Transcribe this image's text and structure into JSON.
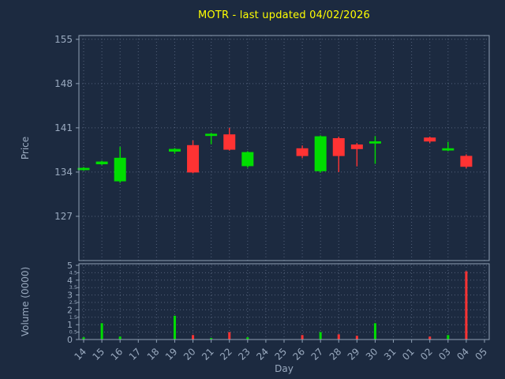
{
  "title": {
    "text": "MOTR - last updated 04/02/2026"
  },
  "colors": {
    "background": "#1c2a40",
    "title": "#ffff00",
    "up": "#00dd00",
    "down": "#ff3333",
    "grid": "#53617a",
    "axis": "#8fa0b4",
    "tick_label": "#9aaabf"
  },
  "chart_data": {
    "type": "candlestick",
    "title": "MOTR - last updated 04/02/2026",
    "x_axis_label": "Day",
    "price_axis_label": "Price",
    "volume_axis_label": "Volume (0000)",
    "categories": [
      "14",
      "15",
      "16",
      "17",
      "18",
      "19",
      "20",
      "21",
      "22",
      "23",
      "24",
      "25",
      "26",
      "27",
      "28",
      "29",
      "30",
      "31",
      "01",
      "02",
      "03",
      "04",
      "05"
    ],
    "price_ticks": [
      127,
      134,
      141,
      148,
      155
    ],
    "price_range": [
      120,
      155.6
    ],
    "volume_major_ticks": [
      0,
      1,
      2,
      3,
      4,
      5
    ],
    "volume_minor_ticks": [
      0.5,
      1.5,
      2.5,
      3.5,
      4.5
    ],
    "volume_range": [
      0,
      5
    ],
    "grid": true,
    "legend": "none",
    "candles": [
      {
        "day": "14",
        "open": 134.4,
        "high": 134.8,
        "low": 134.2,
        "close": 134.6,
        "volume": 0.15
      },
      {
        "day": "15",
        "open": 135.3,
        "high": 135.8,
        "low": 135.1,
        "close": 135.6,
        "volume": 1.1
      },
      {
        "day": "16",
        "open": 132.6,
        "high": 138.0,
        "low": 132.3,
        "close": 136.2,
        "volume": 0.2
      },
      {
        "day": "19",
        "open": 137.3,
        "high": 137.8,
        "low": 136.9,
        "close": 137.6,
        "volume": 1.6
      },
      {
        "day": "20",
        "open": 138.2,
        "high": 139.0,
        "low": 133.8,
        "close": 134.0,
        "volume": 0.3
      },
      {
        "day": "21",
        "open": 139.8,
        "high": 140.2,
        "low": 138.4,
        "close": 140.0,
        "volume": 0.1
      },
      {
        "day": "22",
        "open": 139.9,
        "high": 141.0,
        "low": 137.4,
        "close": 137.6,
        "volume": 0.5
      },
      {
        "day": "23",
        "open": 135.0,
        "high": 137.3,
        "low": 134.7,
        "close": 137.1,
        "volume": 0.15
      },
      {
        "day": "26",
        "open": 137.7,
        "high": 138.2,
        "low": 136.2,
        "close": 136.6,
        "volume": 0.3
      },
      {
        "day": "27",
        "open": 134.2,
        "high": 139.8,
        "low": 133.9,
        "close": 139.6,
        "volume": 0.5
      },
      {
        "day": "28",
        "open": 139.3,
        "high": 139.6,
        "low": 134.0,
        "close": 136.6,
        "volume": 0.35
      },
      {
        "day": "29",
        "open": 138.3,
        "high": 138.6,
        "low": 134.9,
        "close": 137.7,
        "volume": 0.25
      },
      {
        "day": "30",
        "open": 138.6,
        "high": 139.7,
        "low": 135.3,
        "close": 138.8,
        "volume": 1.1
      },
      {
        "day": "02",
        "open": 139.4,
        "high": 139.6,
        "low": 138.6,
        "close": 138.9,
        "volume": 0.2
      },
      {
        "day": "03",
        "open": 137.5,
        "high": 138.8,
        "low": 137.3,
        "close": 137.7,
        "volume": 0.3
      },
      {
        "day": "04",
        "open": 136.5,
        "high": 136.8,
        "low": 134.6,
        "close": 134.9,
        "volume": 4.6
      }
    ]
  }
}
